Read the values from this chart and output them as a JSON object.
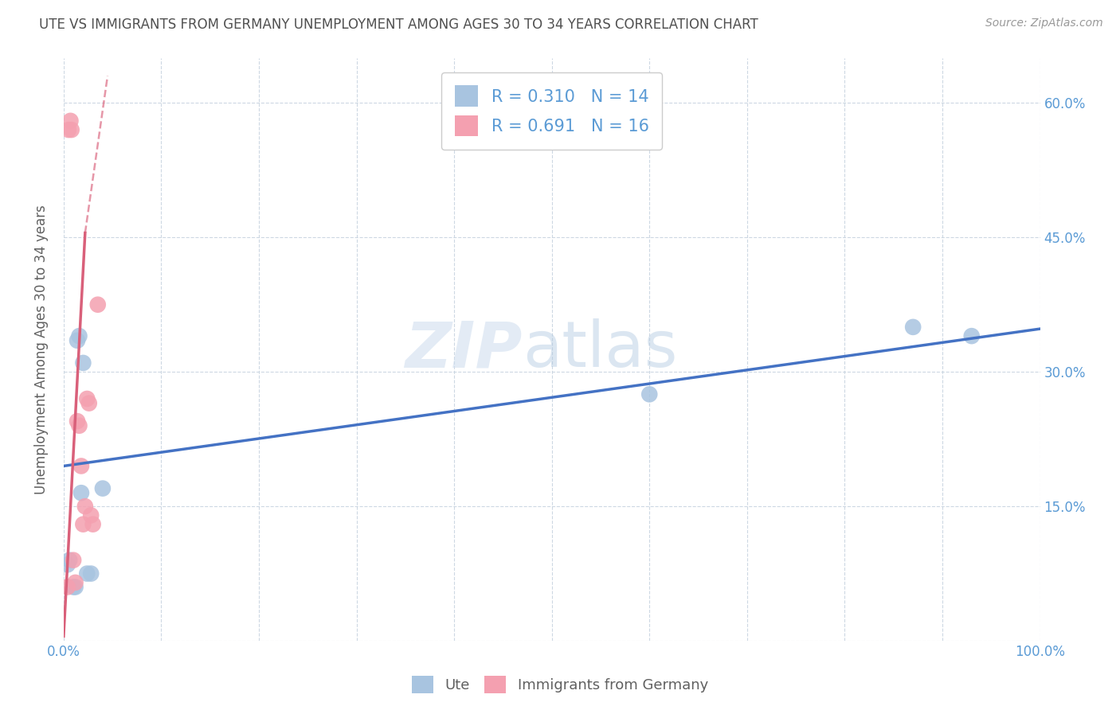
{
  "title": "UTE VS IMMIGRANTS FROM GERMANY UNEMPLOYMENT AMONG AGES 30 TO 34 YEARS CORRELATION CHART",
  "source": "Source: ZipAtlas.com",
  "ylabel": "Unemployment Among Ages 30 to 34 years",
  "xlabel": "",
  "xlim": [
    0,
    1.0
  ],
  "ylim": [
    0,
    0.65
  ],
  "xticks": [
    0.0,
    0.1,
    0.2,
    0.3,
    0.4,
    0.5,
    0.6,
    0.7,
    0.8,
    0.9,
    1.0
  ],
  "xticklabels": [
    "0.0%",
    "",
    "",
    "",
    "",
    "",
    "",
    "",
    "",
    "",
    "100.0%"
  ],
  "yticks": [
    0.0,
    0.15,
    0.3,
    0.45,
    0.6
  ],
  "yticklabels": [
    "",
    "15.0%",
    "30.0%",
    "45.0%",
    "60.0%"
  ],
  "ute_R": "0.310",
  "ute_N": "14",
  "ger_R": "0.691",
  "ger_N": "16",
  "ute_color": "#a8c4e0",
  "ger_color": "#f4a0b0",
  "ute_line_color": "#4472c4",
  "ger_line_color": "#d9607a",
  "watermark_zip": "ZIP",
  "watermark_atlas": "atlas",
  "background_color": "#ffffff",
  "grid_color": "#c8d4e0",
  "title_color": "#505050",
  "axis_color": "#5b9bd5",
  "right_ytick_color": "#5b9bd5",
  "ute_points_x": [
    0.004,
    0.006,
    0.01,
    0.012,
    0.014,
    0.016,
    0.018,
    0.02,
    0.024,
    0.028,
    0.04,
    0.6,
    0.87,
    0.93
  ],
  "ute_points_y": [
    0.085,
    0.09,
    0.06,
    0.06,
    0.335,
    0.34,
    0.165,
    0.31,
    0.075,
    0.075,
    0.17,
    0.275,
    0.35,
    0.34
  ],
  "ger_points_x": [
    0.004,
    0.005,
    0.007,
    0.008,
    0.01,
    0.012,
    0.014,
    0.016,
    0.018,
    0.02,
    0.022,
    0.024,
    0.026,
    0.028,
    0.03,
    0.035
  ],
  "ger_points_y": [
    0.06,
    0.57,
    0.58,
    0.57,
    0.09,
    0.065,
    0.245,
    0.24,
    0.195,
    0.13,
    0.15,
    0.27,
    0.265,
    0.14,
    0.13,
    0.375
  ],
  "ute_line_x0": 0.0,
  "ute_line_y0": 0.195,
  "ute_line_x1": 1.0,
  "ute_line_y1": 0.348,
  "ger_line_solid_x0": 0.0,
  "ger_line_solid_y0": 0.005,
  "ger_line_solid_x1": 0.022,
  "ger_line_solid_y1": 0.455,
  "ger_line_dash_x0": 0.022,
  "ger_line_dash_y0": 0.455,
  "ger_line_dash_x1": 0.045,
  "ger_line_dash_y1": 0.63
}
